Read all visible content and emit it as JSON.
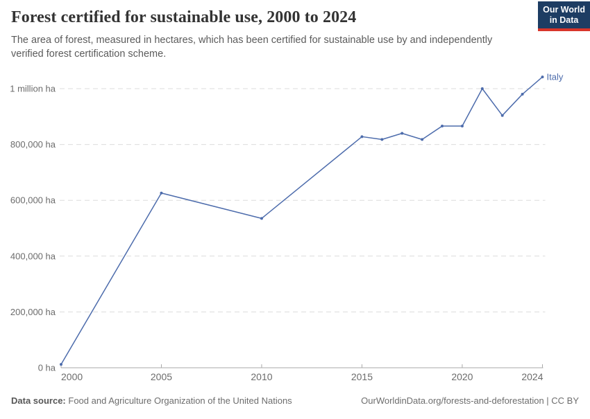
{
  "header": {
    "title": "Forest certified for sustainable use, 2000 to 2024",
    "subtitle": "The area of forest, measured in hectares, which has been certified for sustainable use by and independently verified forest certification scheme.",
    "logo": {
      "line1": "Our World",
      "line2": "in Data"
    }
  },
  "chart_data": {
    "type": "line",
    "title": "Forest certified for sustainable use, 2000 to 2024",
    "xlabel": "",
    "ylabel": "",
    "x": [
      2000,
      2005,
      2010,
      2015,
      2016,
      2017,
      2018,
      2019,
      2020,
      2021,
      2022,
      2023,
      2024
    ],
    "series": [
      {
        "name": "Italy",
        "color": "#4d6cac",
        "values": [
          12000,
          626000,
          535000,
          828000,
          818000,
          840000,
          818000,
          866000,
          866000,
          1000000,
          904000,
          980000,
          1042000
        ]
      }
    ],
    "xlim": [
      2000,
      2024
    ],
    "ylim": [
      0,
      1000000
    ],
    "yticks": [
      {
        "value": 0,
        "label": "0 ha"
      },
      {
        "value": 200000,
        "label": "200,000 ha"
      },
      {
        "value": 400000,
        "label": "400,000 ha"
      },
      {
        "value": 600000,
        "label": "600,000 ha"
      },
      {
        "value": 800000,
        "label": "800,000 ha"
      },
      {
        "value": 1000000,
        "label": "1 million ha"
      }
    ],
    "xticks": [
      {
        "value": 2000,
        "label": "2000"
      },
      {
        "value": 2005,
        "label": "2005"
      },
      {
        "value": 2010,
        "label": "2010"
      },
      {
        "value": 2015,
        "label": "2015"
      },
      {
        "value": 2020,
        "label": "2020"
      },
      {
        "value": 2024,
        "label": "2024"
      }
    ],
    "grid": "horizontal-dashed",
    "legend": "end-of-line-label",
    "unit": "ha"
  },
  "footer": {
    "source_label": "Data source:",
    "source_text": "Food and Agriculture Organization of the United Nations",
    "attribution": "OurWorldinData.org/forests-and-deforestation | CC BY"
  },
  "colors": {
    "line": "#4d6cac",
    "logo_bg": "#1d3d63",
    "logo_red": "#d8352a",
    "grid": "#dcdcdc",
    "axis": "#a9a9a9",
    "tick_text": "#6b6b6b"
  }
}
